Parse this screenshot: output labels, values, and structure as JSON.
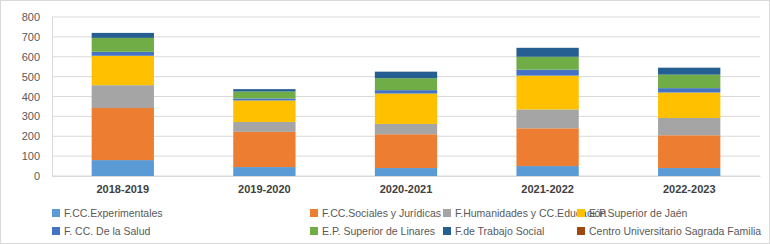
{
  "chart_data": {
    "type": "bar",
    "stacked": true,
    "grid": true,
    "legend": "bottom",
    "categories": [
      "2018-2019",
      "2019-2020",
      "2020-2021",
      "2021-2022",
      "2022-2023"
    ],
    "ylim": [
      0,
      800
    ],
    "yticks": [
      0,
      100,
      200,
      300,
      400,
      500,
      600,
      700,
      800
    ],
    "series": [
      {
        "name": "F.CC.Experimentales",
        "color": "#5b9bd5",
        "values": [
          80,
          45,
          40,
          50,
          40
        ]
      },
      {
        "name": "F.CC.Sociales y Jurídicas",
        "color": "#ed7d31",
        "values": [
          262,
          177,
          170,
          190,
          165
        ]
      },
      {
        "name": "F.Humanidades y CC.Educación",
        "color": "#a5a5a5",
        "values": [
          115,
          50,
          52,
          95,
          87
        ]
      },
      {
        "name": "E.P.Superior de Jaén",
        "color": "#ffc000",
        "values": [
          148,
          108,
          153,
          170,
          128
        ]
      },
      {
        "name": "F. CC. De la Salud",
        "color": "#4472c4",
        "values": [
          20,
          10,
          17,
          30,
          22
        ]
      },
      {
        "name": "E.P. Superior de Linares",
        "color": "#70ad47",
        "values": [
          70,
          35,
          60,
          65,
          68
        ]
      },
      {
        "name": "F.de Trabajo Social",
        "color": "#255e91",
        "values": [
          25,
          12,
          33,
          45,
          35
        ]
      },
      {
        "name": "Centro Universitario Sagrada Familia",
        "color": "#9e480e",
        "values": [
          0,
          0,
          0,
          0,
          0
        ]
      }
    ]
  }
}
